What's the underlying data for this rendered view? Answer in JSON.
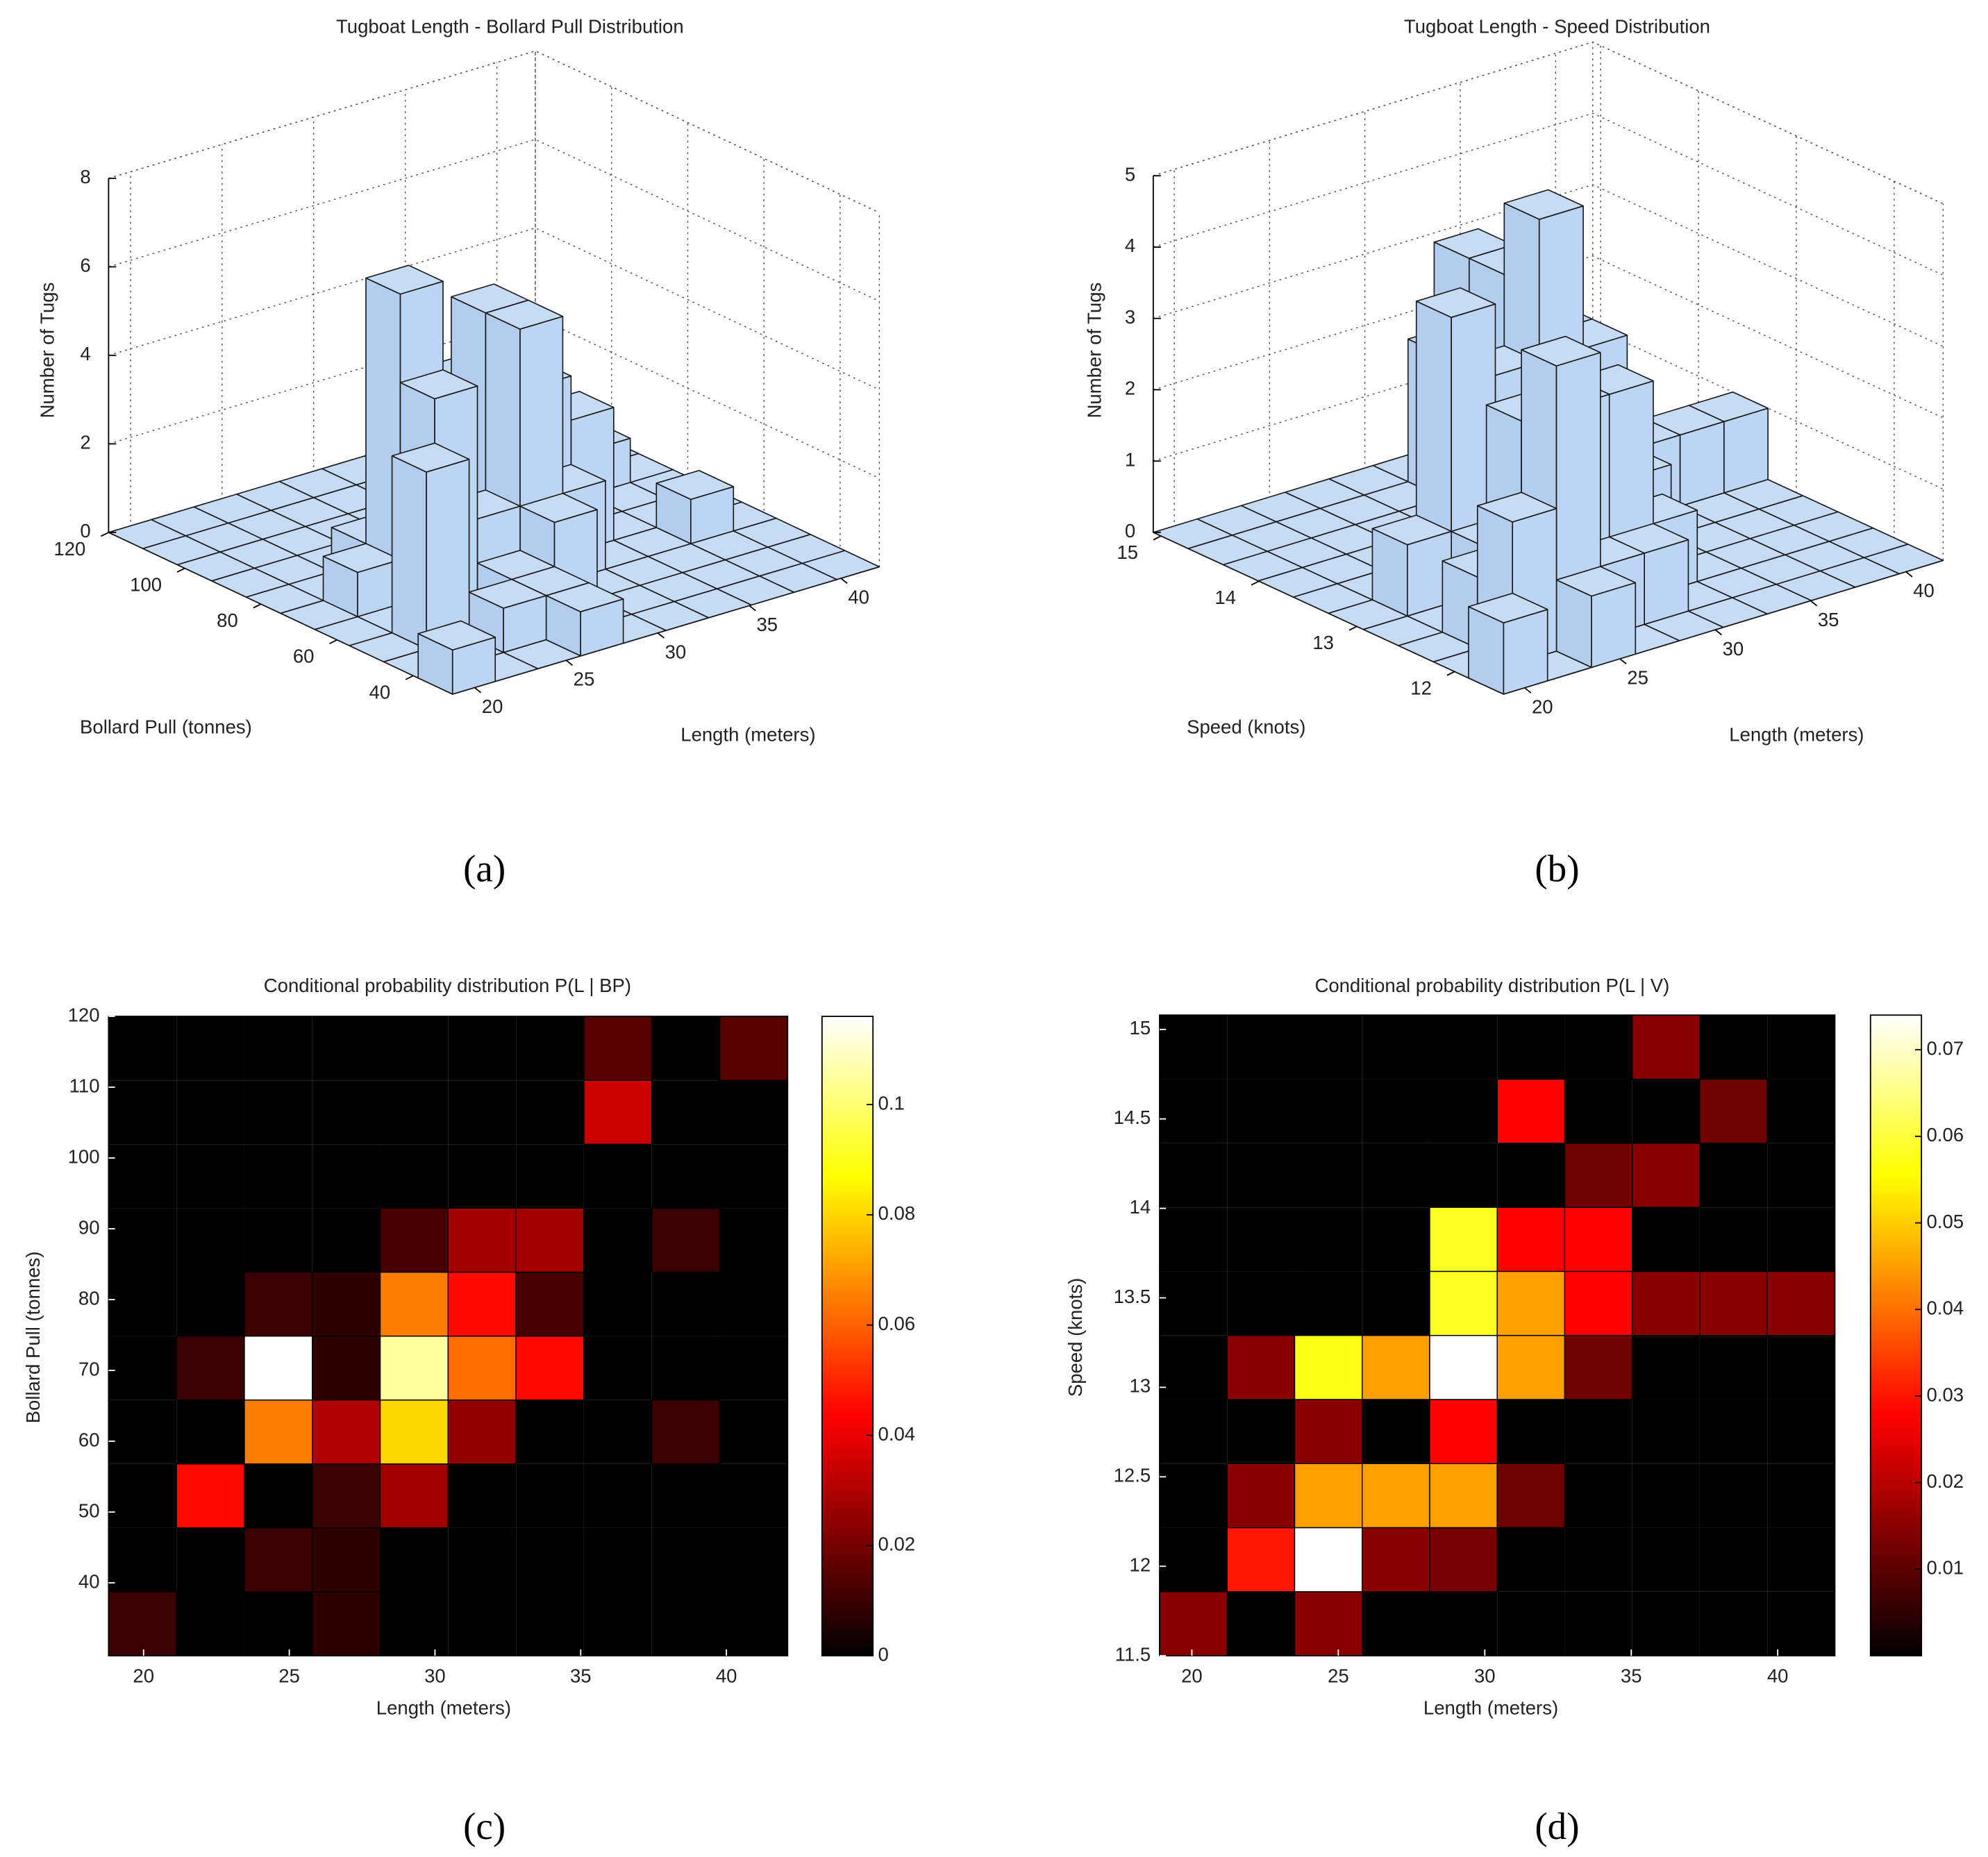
{
  "chart_data": [
    {
      "type": "bar3",
      "title": "Tugboat Length - Bollard Pull Distribution",
      "caption": "(a)",
      "xlabel": "Length (meters)",
      "ylabel": "Bollard Pull (tonnes)",
      "zlabel": "Number of Tugs",
      "xlim": [
        18.8,
        42.1
      ],
      "ylim": [
        29.7,
        120
      ],
      "zlim": [
        0,
        8
      ],
      "xticks": [
        20,
        25,
        30,
        35,
        40
      ],
      "yticks": [
        40,
        60,
        80,
        100,
        120
      ],
      "zticks": [
        0,
        2,
        4,
        6,
        8
      ],
      "color": "#c6dcf5",
      "grid": true,
      "z": [
        [
          1,
          0,
          0,
          1,
          0,
          0,
          0,
          0,
          0,
          0
        ],
        [
          0,
          0,
          1,
          1,
          0,
          0,
          0,
          0,
          0,
          0
        ],
        [
          0,
          4,
          0,
          1,
          2,
          0,
          0,
          0,
          0,
          0
        ],
        [
          0,
          0,
          5,
          2,
          6,
          2,
          0,
          0,
          1,
          0
        ],
        [
          0,
          1,
          7,
          1,
          6,
          4,
          3,
          0,
          0,
          0
        ],
        [
          0,
          0,
          1,
          1,
          4,
          3,
          1,
          0,
          0,
          0
        ],
        [
          0,
          0,
          0,
          0,
          1,
          2,
          2,
          0,
          1,
          0
        ],
        [
          0,
          0,
          0,
          0,
          0,
          0,
          0,
          0,
          0,
          0
        ],
        [
          0,
          0,
          0,
          0,
          0,
          0,
          0,
          1,
          0,
          0
        ],
        [
          0,
          0,
          0,
          0,
          0,
          0,
          0,
          1,
          0,
          1
        ]
      ]
    },
    {
      "type": "bar3",
      "title": "Tugboat Length - Speed Distribution",
      "caption": "(b)",
      "xlabel": "Length (meters)",
      "ylabel": "Speed (knots)",
      "zlabel": "Number of Tugs",
      "xlim": [
        18.9,
        41.95
      ],
      "ylim": [
        11.5,
        15.08
      ],
      "zlim": [
        0,
        5
      ],
      "xticks": [
        20,
        25,
        30,
        35,
        40
      ],
      "yticks": [
        12,
        13,
        14,
        15
      ],
      "zticks": [
        0,
        1,
        2,
        3,
        4,
        5
      ],
      "color": "#c6dcf5",
      "grid": true,
      "z": [
        [
          1,
          0,
          1,
          0,
          0,
          0,
          0,
          0,
          0,
          0
        ],
        [
          0,
          2,
          4,
          1,
          1,
          0,
          0,
          0,
          0,
          0
        ],
        [
          0,
          1,
          3,
          3,
          3,
          1,
          0,
          0,
          0,
          0
        ],
        [
          0,
          0,
          1,
          0,
          2,
          0,
          0,
          0,
          0,
          0
        ],
        [
          0,
          1,
          4,
          3,
          5,
          3,
          1,
          0,
          0,
          0
        ],
        [
          0,
          0,
          0,
          0,
          4,
          3,
          2,
          1,
          1,
          1
        ],
        [
          0,
          0,
          0,
          0,
          4,
          2,
          2,
          0,
          0,
          0
        ],
        [
          0,
          0,
          0,
          0,
          0,
          0,
          1,
          1,
          0,
          0
        ],
        [
          0,
          0,
          0,
          0,
          0,
          2,
          0,
          0,
          1,
          0
        ],
        [
          0,
          0,
          0,
          0,
          0,
          0,
          0,
          1,
          0,
          0
        ]
      ]
    },
    {
      "type": "heatmap",
      "title": "Conditional probability distribution P(L | BP)",
      "caption": "(c)",
      "xlabel": "Length (meters)",
      "ylabel": "Bollard Pull (tonnes)",
      "xlim": [
        18.8,
        42.1
      ],
      "ylim": [
        29.7,
        120
      ],
      "xticks": [
        20,
        25,
        30,
        35,
        40
      ],
      "yticks": [
        40,
        50,
        60,
        70,
        80,
        90,
        100,
        110,
        120
      ],
      "colormap": "hot",
      "clim": [
        0,
        0.116
      ],
      "cticks": [
        0,
        0.02,
        0.04,
        0.06,
        0.08,
        0.1
      ],
      "z": [
        [
          0.01,
          0,
          0,
          0.008,
          0,
          0,
          0,
          0,
          0,
          0
        ],
        [
          0,
          0,
          0.01,
          0.008,
          0,
          0,
          0,
          0,
          0,
          0
        ],
        [
          0,
          0.045,
          0,
          0.01,
          0.028,
          0,
          0,
          0,
          0,
          0
        ],
        [
          0,
          0,
          0.065,
          0.03,
          0.08,
          0.025,
          0,
          0,
          0.01,
          0
        ],
        [
          0,
          0.01,
          0.116,
          0.008,
          0.105,
          0.062,
          0.045,
          0,
          0,
          0
        ],
        [
          0,
          0,
          0.01,
          0.008,
          0.065,
          0.045,
          0.012,
          0,
          0,
          0
        ],
        [
          0,
          0,
          0,
          0,
          0.012,
          0.028,
          0.028,
          0,
          0.01,
          0
        ],
        [
          0,
          0,
          0,
          0,
          0,
          0,
          0,
          0,
          0,
          0
        ],
        [
          0,
          0,
          0,
          0,
          0,
          0,
          0,
          0.035,
          0,
          0
        ],
        [
          0,
          0,
          0,
          0,
          0,
          0,
          0,
          0.015,
          0,
          0.015
        ]
      ]
    },
    {
      "type": "heatmap",
      "title": "Conditional probability distribution P(L | V)",
      "caption": "(d)",
      "xlabel": "Length (meters)",
      "ylabel": "Speed (knots)",
      "xlim": [
        18.9,
        41.95
      ],
      "ylim": [
        11.5,
        15.08
      ],
      "xticks": [
        20,
        25,
        30,
        35,
        40
      ],
      "yticks": [
        11.5,
        12,
        12.5,
        13,
        13.5,
        14,
        14.5,
        15
      ],
      "colormap": "hot",
      "clim": [
        0,
        0.074
      ],
      "cticks": [
        0.01,
        0.02,
        0.03,
        0.04,
        0.05,
        0.06,
        0.07
      ],
      "z": [
        [
          0.015,
          0,
          0.015,
          0,
          0,
          0,
          0,
          0,
          0,
          0
        ],
        [
          0,
          0.03,
          0.074,
          0.015,
          0.013,
          0,
          0,
          0,
          0,
          0
        ],
        [
          0,
          0.015,
          0.045,
          0.045,
          0.045,
          0.012,
          0,
          0,
          0,
          0
        ],
        [
          0,
          0,
          0.015,
          0,
          0.028,
          0,
          0,
          0,
          0,
          0
        ],
        [
          0,
          0.015,
          0.057,
          0.045,
          0.074,
          0.045,
          0.012,
          0,
          0,
          0
        ],
        [
          0,
          0,
          0,
          0,
          0.058,
          0.045,
          0.028,
          0.015,
          0.015,
          0.015
        ],
        [
          0,
          0,
          0,
          0,
          0.058,
          0.028,
          0.028,
          0,
          0,
          0
        ],
        [
          0,
          0,
          0,
          0,
          0,
          0,
          0.012,
          0.015,
          0,
          0
        ],
        [
          0,
          0,
          0,
          0,
          0,
          0.028,
          0,
          0,
          0.012,
          0
        ],
        [
          0,
          0,
          0,
          0,
          0,
          0,
          0,
          0.015,
          0,
          0
        ]
      ]
    }
  ]
}
